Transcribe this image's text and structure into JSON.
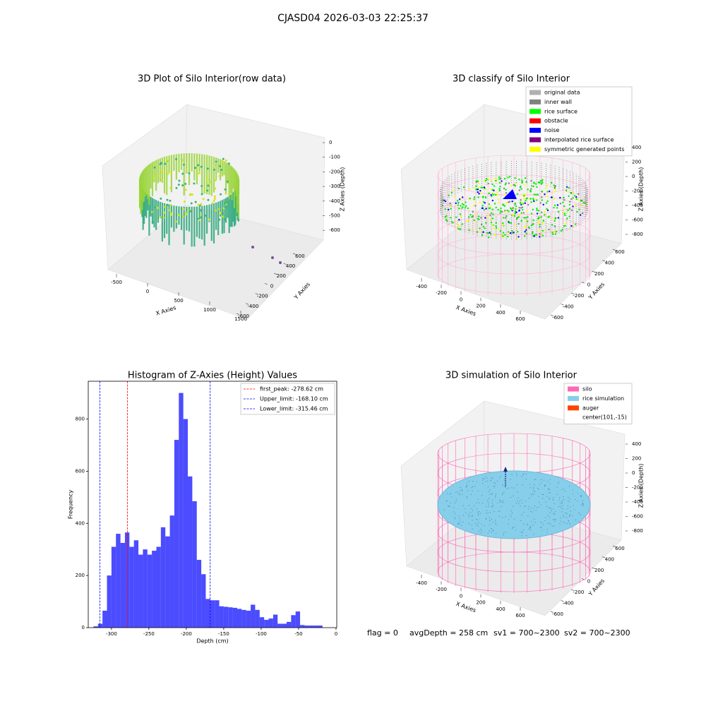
{
  "title": "CJASD04 2026-03-03 22:25:37",
  "footer": [
    "flag = 0",
    "avgDepth = 258 cm",
    "sv1 = 700~2300",
    "sv2 = 700~2300"
  ],
  "chart_data": [
    {
      "type": "scatter3d",
      "title": "3D Plot of Silo Interior(row data)",
      "xlabel": "X Axies",
      "ylabel": "Y Axies",
      "zlabel": "Z Axies (Depth)",
      "xlim": [
        -640,
        1650
      ],
      "xticks": [
        -500,
        0,
        500,
        1000,
        1500
      ],
      "ylim": [
        -700,
        700
      ],
      "yticks": [
        -600,
        -400,
        -200,
        0,
        200,
        400,
        600
      ],
      "zlim": [
        -680,
        40
      ],
      "zticks": [
        -600,
        -500,
        -400,
        -300,
        -200,
        -100,
        0
      ]
    },
    {
      "type": "scatter3d",
      "title": "3D classify of Silo Interior",
      "xlabel": "X Axies",
      "ylabel": "Y Axies",
      "zlabel": "Z Axies (Depth)",
      "xlim": [
        -540,
        780
      ],
      "xticks": [
        -400,
        -200,
        0,
        200,
        400,
        600
      ],
      "ylim": [
        -700,
        700
      ],
      "yticks": [
        -600,
        -400,
        -200,
        0,
        200,
        400,
        600
      ],
      "zlim": [
        -900,
        450
      ],
      "zticks": [
        -800,
        -600,
        -400,
        -200,
        0,
        200,
        400
      ],
      "legend": [
        {
          "name": "original data",
          "color": "#b0b0b0"
        },
        {
          "name": "inner wall",
          "color": "#808080"
        },
        {
          "name": "rice surface",
          "color": "#00ff00"
        },
        {
          "name": "obstacle",
          "color": "#ff0000"
        },
        {
          "name": "noise",
          "color": "#0000ff"
        },
        {
          "name": "interpolated rice surface",
          "color": "#800080"
        },
        {
          "name": "symmetric generated points",
          "color": "#ffff00"
        }
      ]
    },
    {
      "type": "histogram",
      "title": "Histogram of Z-Axies (Height) Values",
      "xlabel": "Depth (cm)",
      "ylabel": "Frequency",
      "color": "#0000ff",
      "bins": [
        -324,
        -318,
        -312,
        -306,
        -300,
        -294,
        -288,
        -282,
        -276,
        -270,
        -264,
        -258,
        -252,
        -246,
        -240,
        -234,
        -228,
        -222,
        -216,
        -210,
        -204,
        -198,
        -192,
        -186,
        -180,
        -174,
        -168,
        -162,
        -156,
        -150,
        -144,
        -138,
        -132,
        -126,
        -120,
        -114,
        -108,
        -102,
        -96,
        -90,
        -84,
        -78,
        -72,
        -66,
        -60,
        -54,
        -48,
        -42,
        -36,
        -30,
        -24,
        -18
      ],
      "values": [
        5,
        15,
        65,
        200,
        310,
        360,
        325,
        365,
        310,
        335,
        280,
        300,
        280,
        295,
        310,
        385,
        350,
        430,
        720,
        900,
        800,
        580,
        485,
        260,
        205,
        110,
        105,
        105,
        82,
        80,
        78,
        76,
        72,
        68,
        65,
        88,
        68,
        40,
        30,
        35,
        50,
        15,
        15,
        22,
        48,
        62,
        10,
        8,
        8,
        8,
        8
      ],
      "xlim": [
        -331,
        1
      ],
      "xticks": [
        -300,
        -250,
        -200,
        -150,
        -100,
        -50,
        0
      ],
      "ylim": [
        0,
        945
      ],
      "yticks": [
        0,
        200,
        400,
        600,
        800
      ],
      "vlines": [
        {
          "label": "first_peak: -278.62 cm",
          "value": -278.62,
          "color": "#ff0000"
        },
        {
          "label": "Upper_limit: -168.10 cm",
          "value": -168.1,
          "color": "#0000ff"
        },
        {
          "label": "Lower_limit: -315.46 cm",
          "value": -315.46,
          "color": "#0000ff"
        }
      ]
    },
    {
      "type": "surface3d",
      "title": "3D simulation of Silo Interior",
      "xlabel": "X Axies",
      "ylabel": "Y Axies",
      "zlabel": "Z Axies (Depth)",
      "xlim": [
        -540,
        780
      ],
      "xticks": [
        -400,
        -200,
        0,
        200,
        400,
        600
      ],
      "ylim": [
        -700,
        700
      ],
      "yticks": [
        -600,
        -400,
        -200,
        0,
        200,
        400,
        600
      ],
      "zlim": [
        -900,
        450
      ],
      "zticks": [
        -800,
        -600,
        -400,
        -200,
        0,
        200,
        400
      ],
      "legend": [
        {
          "name": "silo",
          "color": "#ff69b4"
        },
        {
          "name": "rice simulation",
          "color": "#87ceeb"
        },
        {
          "name": "auger",
          "color": "#ff4500"
        },
        {
          "name": "center(101,-15)"
        }
      ]
    }
  ]
}
